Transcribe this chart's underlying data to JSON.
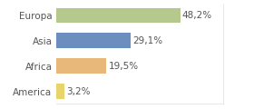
{
  "categories": [
    "Europa",
    "Asia",
    "Africa",
    "America"
  ],
  "values": [
    48.2,
    29.1,
    19.5,
    3.2
  ],
  "labels": [
    "48,2%",
    "29,1%",
    "19,5%",
    "3,2%"
  ],
  "bar_colors": [
    "#b5c98e",
    "#6c8ebf",
    "#e8b87a",
    "#e8d46a"
  ],
  "background_color": "#ffffff",
  "label_fontsize": 7.5,
  "tick_fontsize": 7.5,
  "xlim": [
    0,
    65
  ]
}
